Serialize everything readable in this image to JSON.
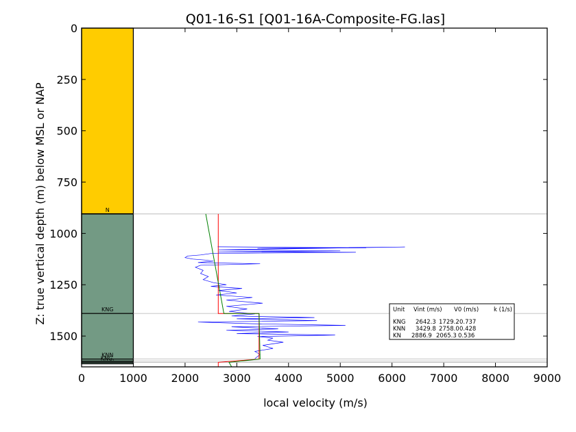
{
  "chart_data": {
    "type": "line",
    "title": "Q01-16-S1 [Q01-16A-Composite-FG.las]",
    "xlabel": "local velocity (m/s)",
    "ylabel": "Z: true vertical depth (m) below MSL or NAP",
    "xlim": [
      0,
      9000
    ],
    "ylim": [
      1650,
      0
    ],
    "xticks": [
      "0",
      "1000",
      "2000",
      "3000",
      "4000",
      "5000",
      "6000",
      "7000",
      "8000",
      "9000"
    ],
    "yticks": [
      "0",
      "250",
      "500",
      "750",
      "1000",
      "1250",
      "1500"
    ],
    "strat_column": {
      "x_range": [
        0,
        1000
      ],
      "intervals": [
        {
          "top": 0,
          "base": 905,
          "color": "#FFCC00"
        },
        {
          "top": 905,
          "base": 1635,
          "color": "#739A84"
        }
      ],
      "boundaries": [
        {
          "depth": 905,
          "label": "N"
        },
        {
          "depth": 1390,
          "label": "KNG"
        },
        {
          "depth": 1612,
          "label": "KNN"
        },
        {
          "depth": 1622,
          "label": ""
        },
        {
          "depth": 1628,
          "label": "KNG."
        }
      ]
    },
    "series": [
      {
        "color": "#0000FF",
        "points": [
          [
            2630,
            1065
          ],
          [
            4200,
            1068
          ],
          [
            5500,
            1070
          ],
          [
            3400,
            1073
          ],
          [
            6250,
            1066
          ],
          [
            2650,
            1080
          ],
          [
            5000,
            1085
          ],
          [
            2650,
            1090
          ],
          [
            5300,
            1092
          ],
          [
            2500,
            1098
          ],
          [
            2300,
            1105
          ],
          [
            2050,
            1110
          ],
          [
            2000,
            1118
          ],
          [
            2150,
            1125
          ],
          [
            2400,
            1130
          ],
          [
            2550,
            1135
          ],
          [
            2250,
            1142
          ],
          [
            3450,
            1148
          ],
          [
            2300,
            1155
          ],
          [
            2200,
            1165
          ],
          [
            2350,
            1180
          ],
          [
            2300,
            1195
          ],
          [
            2450,
            1210
          ],
          [
            2350,
            1225
          ],
          [
            2550,
            1240
          ],
          [
            2800,
            1250
          ],
          [
            2500,
            1258
          ],
          [
            3100,
            1268
          ],
          [
            2650,
            1278
          ],
          [
            3000,
            1290
          ],
          [
            2600,
            1300
          ],
          [
            3300,
            1312
          ],
          [
            2800,
            1325
          ],
          [
            3500,
            1340
          ],
          [
            2800,
            1355
          ],
          [
            3200,
            1368
          ],
          [
            2850,
            1380
          ],
          [
            3350,
            1392
          ],
          [
            2900,
            1402
          ],
          [
            4500,
            1410
          ],
          [
            3000,
            1416
          ],
          [
            4550,
            1425
          ],
          [
            2250,
            1432
          ],
          [
            3300,
            1440
          ],
          [
            5100,
            1448
          ],
          [
            2900,
            1455
          ],
          [
            3800,
            1465
          ],
          [
            2800,
            1472
          ],
          [
            4000,
            1480
          ],
          [
            3000,
            1488
          ],
          [
            4900,
            1495
          ],
          [
            3400,
            1502
          ],
          [
            3700,
            1510
          ],
          [
            3600,
            1520
          ],
          [
            3900,
            1530
          ],
          [
            3500,
            1545
          ],
          [
            3700,
            1560
          ],
          [
            3350,
            1575
          ],
          [
            3450,
            1590
          ],
          [
            3350,
            1610
          ]
        ]
      },
      {
        "color": "#FF0000",
        "points": [
          [
            2642.3,
            905
          ],
          [
            2642.3,
            1390
          ],
          [
            3429.8,
            1390
          ],
          [
            3429.8,
            1612
          ],
          [
            2642.3,
            1628
          ],
          [
            2642.3,
            1650
          ]
        ]
      },
      {
        "color": "#008000",
        "points": [
          [
            2400,
            905
          ],
          [
            2750,
            1390
          ],
          [
            3429.8,
            1390
          ],
          [
            3450,
            1612
          ],
          [
            2850,
            1628
          ],
          [
            2900,
            1650
          ]
        ]
      }
    ],
    "legend": {
      "header": [
        "Unit",
        "Vint (m/s)",
        "V0 (m/s)",
        "k (1/s)"
      ],
      "rows": [
        [
          "KNG",
          "2642.3",
          "1729.2",
          "0.737"
        ],
        [
          "KNN",
          "3429.8",
          "2758.0",
          "0.428"
        ],
        [
          "KN",
          "2886.9",
          "2065.3",
          "0.536"
        ]
      ]
    }
  }
}
